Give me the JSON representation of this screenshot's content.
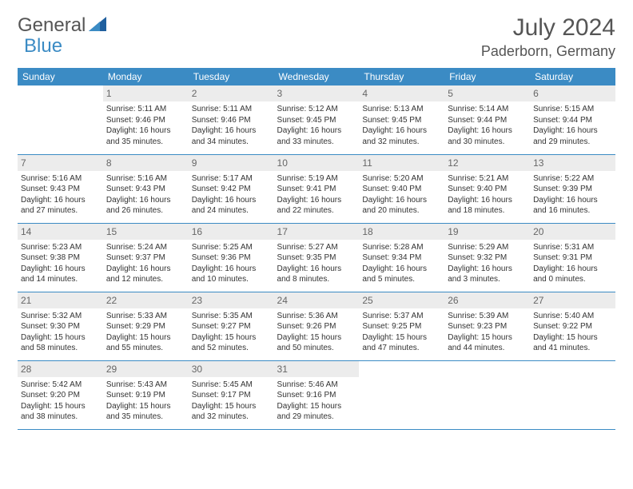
{
  "logo": {
    "general": "General",
    "blue": "Blue"
  },
  "header": {
    "month": "July 2024",
    "location": "Paderborn, Germany"
  },
  "colors": {
    "accent": "#3b8bc4",
    "daynum_bg": "#ececec",
    "text": "#333333"
  },
  "weekdays": [
    "Sunday",
    "Monday",
    "Tuesday",
    "Wednesday",
    "Thursday",
    "Friday",
    "Saturday"
  ],
  "weeks": [
    [
      {
        "day": "",
        "sunrise": "",
        "sunset": "",
        "daylight": ""
      },
      {
        "day": "1",
        "sunrise": "Sunrise: 5:11 AM",
        "sunset": "Sunset: 9:46 PM",
        "daylight": "Daylight: 16 hours and 35 minutes."
      },
      {
        "day": "2",
        "sunrise": "Sunrise: 5:11 AM",
        "sunset": "Sunset: 9:46 PM",
        "daylight": "Daylight: 16 hours and 34 minutes."
      },
      {
        "day": "3",
        "sunrise": "Sunrise: 5:12 AM",
        "sunset": "Sunset: 9:45 PM",
        "daylight": "Daylight: 16 hours and 33 minutes."
      },
      {
        "day": "4",
        "sunrise": "Sunrise: 5:13 AM",
        "sunset": "Sunset: 9:45 PM",
        "daylight": "Daylight: 16 hours and 32 minutes."
      },
      {
        "day": "5",
        "sunrise": "Sunrise: 5:14 AM",
        "sunset": "Sunset: 9:44 PM",
        "daylight": "Daylight: 16 hours and 30 minutes."
      },
      {
        "day": "6",
        "sunrise": "Sunrise: 5:15 AM",
        "sunset": "Sunset: 9:44 PM",
        "daylight": "Daylight: 16 hours and 29 minutes."
      }
    ],
    [
      {
        "day": "7",
        "sunrise": "Sunrise: 5:16 AM",
        "sunset": "Sunset: 9:43 PM",
        "daylight": "Daylight: 16 hours and 27 minutes."
      },
      {
        "day": "8",
        "sunrise": "Sunrise: 5:16 AM",
        "sunset": "Sunset: 9:43 PM",
        "daylight": "Daylight: 16 hours and 26 minutes."
      },
      {
        "day": "9",
        "sunrise": "Sunrise: 5:17 AM",
        "sunset": "Sunset: 9:42 PM",
        "daylight": "Daylight: 16 hours and 24 minutes."
      },
      {
        "day": "10",
        "sunrise": "Sunrise: 5:19 AM",
        "sunset": "Sunset: 9:41 PM",
        "daylight": "Daylight: 16 hours and 22 minutes."
      },
      {
        "day": "11",
        "sunrise": "Sunrise: 5:20 AM",
        "sunset": "Sunset: 9:40 PM",
        "daylight": "Daylight: 16 hours and 20 minutes."
      },
      {
        "day": "12",
        "sunrise": "Sunrise: 5:21 AM",
        "sunset": "Sunset: 9:40 PM",
        "daylight": "Daylight: 16 hours and 18 minutes."
      },
      {
        "day": "13",
        "sunrise": "Sunrise: 5:22 AM",
        "sunset": "Sunset: 9:39 PM",
        "daylight": "Daylight: 16 hours and 16 minutes."
      }
    ],
    [
      {
        "day": "14",
        "sunrise": "Sunrise: 5:23 AM",
        "sunset": "Sunset: 9:38 PM",
        "daylight": "Daylight: 16 hours and 14 minutes."
      },
      {
        "day": "15",
        "sunrise": "Sunrise: 5:24 AM",
        "sunset": "Sunset: 9:37 PM",
        "daylight": "Daylight: 16 hours and 12 minutes."
      },
      {
        "day": "16",
        "sunrise": "Sunrise: 5:25 AM",
        "sunset": "Sunset: 9:36 PM",
        "daylight": "Daylight: 16 hours and 10 minutes."
      },
      {
        "day": "17",
        "sunrise": "Sunrise: 5:27 AM",
        "sunset": "Sunset: 9:35 PM",
        "daylight": "Daylight: 16 hours and 8 minutes."
      },
      {
        "day": "18",
        "sunrise": "Sunrise: 5:28 AM",
        "sunset": "Sunset: 9:34 PM",
        "daylight": "Daylight: 16 hours and 5 minutes."
      },
      {
        "day": "19",
        "sunrise": "Sunrise: 5:29 AM",
        "sunset": "Sunset: 9:32 PM",
        "daylight": "Daylight: 16 hours and 3 minutes."
      },
      {
        "day": "20",
        "sunrise": "Sunrise: 5:31 AM",
        "sunset": "Sunset: 9:31 PM",
        "daylight": "Daylight: 16 hours and 0 minutes."
      }
    ],
    [
      {
        "day": "21",
        "sunrise": "Sunrise: 5:32 AM",
        "sunset": "Sunset: 9:30 PM",
        "daylight": "Daylight: 15 hours and 58 minutes."
      },
      {
        "day": "22",
        "sunrise": "Sunrise: 5:33 AM",
        "sunset": "Sunset: 9:29 PM",
        "daylight": "Daylight: 15 hours and 55 minutes."
      },
      {
        "day": "23",
        "sunrise": "Sunrise: 5:35 AM",
        "sunset": "Sunset: 9:27 PM",
        "daylight": "Daylight: 15 hours and 52 minutes."
      },
      {
        "day": "24",
        "sunrise": "Sunrise: 5:36 AM",
        "sunset": "Sunset: 9:26 PM",
        "daylight": "Daylight: 15 hours and 50 minutes."
      },
      {
        "day": "25",
        "sunrise": "Sunrise: 5:37 AM",
        "sunset": "Sunset: 9:25 PM",
        "daylight": "Daylight: 15 hours and 47 minutes."
      },
      {
        "day": "26",
        "sunrise": "Sunrise: 5:39 AM",
        "sunset": "Sunset: 9:23 PM",
        "daylight": "Daylight: 15 hours and 44 minutes."
      },
      {
        "day": "27",
        "sunrise": "Sunrise: 5:40 AM",
        "sunset": "Sunset: 9:22 PM",
        "daylight": "Daylight: 15 hours and 41 minutes."
      }
    ],
    [
      {
        "day": "28",
        "sunrise": "Sunrise: 5:42 AM",
        "sunset": "Sunset: 9:20 PM",
        "daylight": "Daylight: 15 hours and 38 minutes."
      },
      {
        "day": "29",
        "sunrise": "Sunrise: 5:43 AM",
        "sunset": "Sunset: 9:19 PM",
        "daylight": "Daylight: 15 hours and 35 minutes."
      },
      {
        "day": "30",
        "sunrise": "Sunrise: 5:45 AM",
        "sunset": "Sunset: 9:17 PM",
        "daylight": "Daylight: 15 hours and 32 minutes."
      },
      {
        "day": "31",
        "sunrise": "Sunrise: 5:46 AM",
        "sunset": "Sunset: 9:16 PM",
        "daylight": "Daylight: 15 hours and 29 minutes."
      },
      {
        "day": "",
        "sunrise": "",
        "sunset": "",
        "daylight": ""
      },
      {
        "day": "",
        "sunrise": "",
        "sunset": "",
        "daylight": ""
      },
      {
        "day": "",
        "sunrise": "",
        "sunset": "",
        "daylight": ""
      }
    ]
  ]
}
